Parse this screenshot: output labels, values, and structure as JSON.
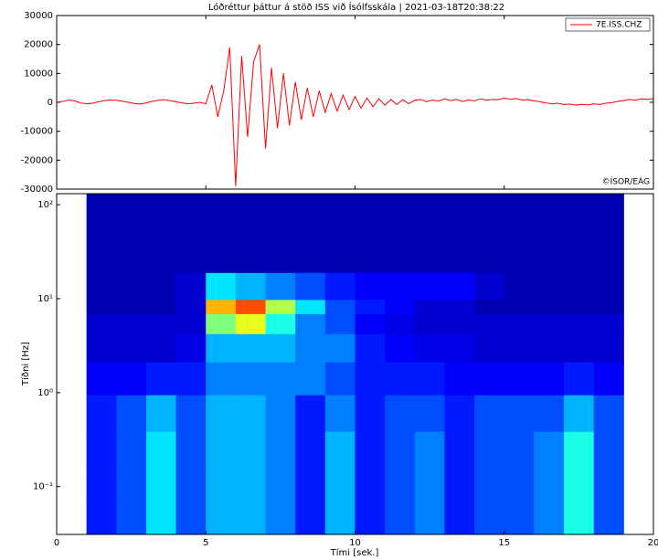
{
  "chart_data": [
    {
      "type": "line",
      "title": "Lóðréttur þáttur á stöð ISS við Ísólfsskála  |  2021-03-18T20:38:22",
      "annotation": "©ÍSOR/EÁG",
      "x": [
        0,
        0.2,
        0.4,
        0.6,
        0.8,
        1,
        1.2,
        1.4,
        1.6,
        1.8,
        2,
        2.2,
        2.4,
        2.6,
        2.8,
        3,
        3.2,
        3.4,
        3.6,
        3.8,
        4,
        4.2,
        4.4,
        4.6,
        4.8,
        5,
        5.2,
        5.4,
        5.6,
        5.8,
        6,
        6.2,
        6.4,
        6.6,
        6.8,
        7,
        7.2,
        7.4,
        7.6,
        7.8,
        8,
        8.2,
        8.4,
        8.6,
        8.8,
        9,
        9.2,
        9.4,
        9.6,
        9.8,
        10,
        10.2,
        10.4,
        10.6,
        10.8,
        11,
        11.2,
        11.4,
        11.6,
        11.8,
        12,
        12.2,
        12.4,
        12.6,
        12.8,
        13,
        13.2,
        13.4,
        13.6,
        13.8,
        14,
        14.2,
        14.4,
        14.6,
        14.8,
        15,
        15.2,
        15.4,
        15.6,
        15.8,
        16,
        16.2,
        16.4,
        16.6,
        16.8,
        17,
        17.2,
        17.4,
        17.6,
        17.8,
        18,
        18.2,
        18.4,
        18.6,
        18.8,
        19,
        19.2,
        19.4,
        19.6,
        19.8,
        20
      ],
      "series": [
        {
          "name": "7E.ISS.CHZ",
          "color": "#ff0000",
          "values": [
            0,
            300,
            800,
            500,
            -200,
            -500,
            -300,
            200,
            600,
            800,
            700,
            400,
            0,
            -400,
            -600,
            -200,
            300,
            700,
            900,
            600,
            200,
            -200,
            -500,
            -300,
            0,
            -500,
            6000,
            -5000,
            4000,
            19000,
            -29000,
            16000,
            -12000,
            14000,
            20000,
            -16000,
            12000,
            -9000,
            10000,
            -8000,
            7000,
            -6000,
            5000,
            -5000,
            4000,
            -3500,
            3000,
            -3000,
            2500,
            -2500,
            2000,
            -2000,
            1500,
            -1500,
            1200,
            -1000,
            1000,
            -800,
            900,
            -500,
            700,
            1000,
            200,
            800,
            400,
            1200,
            600,
            1000,
            300,
            800,
            500,
            1200,
            700,
            1000,
            900,
            1400,
            1100,
            1300,
            800,
            900,
            500,
            200,
            -200,
            -500,
            -300,
            -800,
            -600,
            -1000,
            -700,
            -900,
            -500,
            -800,
            -300,
            -100,
            300,
            600,
            1000,
            800,
            1200,
            1000,
            1300
          ]
        }
      ],
      "xlim": [
        0,
        20
      ],
      "xticks": [
        0,
        5,
        10,
        15,
        20
      ],
      "ylim": [
        -30000,
        30000
      ],
      "yticks": [
        -30000,
        -20000,
        -10000,
        0,
        10000,
        20000,
        30000
      ],
      "legend": "upper right"
    },
    {
      "type": "heatmap",
      "xlabel": "Tími [sek.]",
      "ylabel": "Tíðni [Hz]",
      "log_y": true,
      "colormap": "jet",
      "x": [
        1.5,
        2.5,
        3.5,
        4.5,
        5.5,
        6.5,
        7.5,
        8.5,
        9.5,
        10.5,
        11.5,
        12.5,
        13.5,
        14.5,
        15.5,
        16.5,
        17.5,
        18.5
      ],
      "y": [
        0.05,
        0.1,
        0.25,
        0.6,
        1.5,
        3,
        6,
        8,
        12,
        30,
        80
      ],
      "values": [
        [
          0.15,
          0.2,
          0.35,
          0.2,
          0.3,
          0.3,
          0.25,
          0.15,
          0.3,
          0.15,
          0.2,
          0.25,
          0.15,
          0.2,
          0.2,
          0.25,
          0.4,
          0.2
        ],
        [
          0.15,
          0.2,
          0.35,
          0.2,
          0.3,
          0.3,
          0.25,
          0.15,
          0.3,
          0.15,
          0.2,
          0.25,
          0.15,
          0.2,
          0.2,
          0.25,
          0.4,
          0.2
        ],
        [
          0.15,
          0.2,
          0.35,
          0.2,
          0.3,
          0.3,
          0.25,
          0.15,
          0.3,
          0.15,
          0.2,
          0.25,
          0.15,
          0.2,
          0.2,
          0.25,
          0.4,
          0.2
        ],
        [
          0.15,
          0.2,
          0.3,
          0.2,
          0.3,
          0.3,
          0.25,
          0.15,
          0.25,
          0.15,
          0.2,
          0.2,
          0.15,
          0.2,
          0.2,
          0.2,
          0.3,
          0.2
        ],
        [
          0.12,
          0.12,
          0.15,
          0.15,
          0.25,
          0.25,
          0.25,
          0.25,
          0.2,
          0.15,
          0.15,
          0.15,
          0.12,
          0.12,
          0.12,
          0.12,
          0.15,
          0.12
        ],
        [
          0.08,
          0.08,
          0.08,
          0.1,
          0.3,
          0.3,
          0.3,
          0.25,
          0.25,
          0.15,
          0.12,
          0.1,
          0.1,
          0.08,
          0.08,
          0.08,
          0.08,
          0.08
        ],
        [
          0.08,
          0.08,
          0.08,
          0.08,
          0.5,
          0.6,
          0.4,
          0.25,
          0.2,
          0.12,
          0.1,
          0.08,
          0.08,
          0.08,
          0.08,
          0.08,
          0.08,
          0.08
        ],
        [
          0.05,
          0.05,
          0.05,
          0.08,
          0.7,
          0.8,
          0.55,
          0.35,
          0.2,
          0.15,
          0.12,
          0.08,
          0.08,
          0.05,
          0.05,
          0.05,
          0.05,
          0.05
        ],
        [
          0.05,
          0.05,
          0.05,
          0.08,
          0.35,
          0.3,
          0.25,
          0.2,
          0.15,
          0.12,
          0.12,
          0.12,
          0.12,
          0.08,
          0.05,
          0.05,
          0.05,
          0.05
        ],
        [
          0.05,
          0.05,
          0.05,
          0.05,
          0.05,
          0.05,
          0.05,
          0.05,
          0.05,
          0.05,
          0.05,
          0.05,
          0.05,
          0.05,
          0.05,
          0.05,
          0.05,
          0.05
        ],
        [
          0.05,
          0.05,
          0.05,
          0.05,
          0.05,
          0.05,
          0.05,
          0.05,
          0.05,
          0.05,
          0.05,
          0.05,
          0.05,
          0.05,
          0.05,
          0.05,
          0.05,
          0.05
        ]
      ],
      "xlim": [
        0,
        20
      ],
      "xticks": [
        0,
        5,
        10,
        15,
        20
      ],
      "ylim": [
        0.031,
        131
      ],
      "yticks": [
        {
          "value": 0.1,
          "label": "10⁻¹"
        },
        {
          "value": 1,
          "label": "10⁰"
        },
        {
          "value": 10,
          "label": "10¹"
        },
        {
          "value": 100,
          "label": "10²"
        }
      ]
    }
  ]
}
